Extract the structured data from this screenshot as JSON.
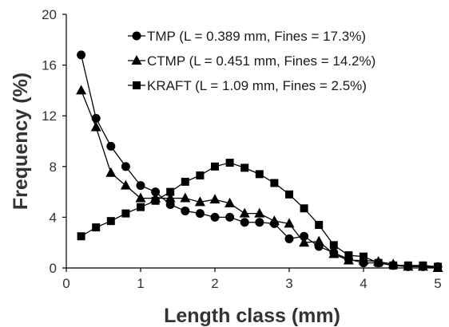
{
  "chart_data": {
    "type": "line",
    "title": "",
    "xlabel": "Length class (mm)",
    "ylabel": "Frequency (%)",
    "xlim": [
      0,
      5
    ],
    "ylim": [
      0,
      20
    ],
    "xticks": [
      0,
      1,
      2,
      3,
      4,
      5
    ],
    "yticks": [
      0,
      4,
      8,
      12,
      16,
      20
    ],
    "xtick_labels": [
      "0",
      "1",
      "2",
      "3",
      "4",
      "5"
    ],
    "ytick_labels": [
      "0",
      "4",
      "8",
      "12",
      "16",
      "20"
    ],
    "grid": false,
    "legend_position": "top-right",
    "x": [
      0.2,
      0.4,
      0.6,
      0.8,
      1.0,
      1.2,
      1.4,
      1.6,
      1.8,
      2.0,
      2.2,
      2.4,
      2.6,
      2.8,
      3.0,
      3.2,
      3.4,
      3.6,
      3.8,
      4.0,
      4.2,
      4.4,
      4.6,
      4.8,
      5.0
    ],
    "series": [
      {
        "name": "TMP (L = 0.389 mm, Fines = 17.3%)",
        "marker": "circle",
        "values": [
          16.8,
          11.8,
          9.6,
          8.0,
          6.5,
          6.0,
          5.0,
          4.5,
          4.3,
          4.0,
          4.0,
          3.6,
          3.6,
          3.5,
          2.3,
          2.5,
          1.7,
          1.2,
          0.7,
          0.4,
          0.4,
          0.2,
          0.1,
          0.1,
          0.1
        ]
      },
      {
        "name": "CTMP (L = 0.451 mm, Fines = 14.2%)",
        "marker": "triangle",
        "values": [
          14.0,
          11.1,
          7.5,
          6.5,
          5.5,
          5.5,
          5.5,
          5.5,
          5.2,
          5.4,
          5.1,
          4.3,
          4.3,
          3.7,
          3.5,
          2.0,
          2.1,
          1.1,
          0.6,
          0.6,
          0.5,
          0.3,
          0.1,
          0.1,
          0.0
        ]
      },
      {
        "name": "KRAFT (L = 1.09 mm, Fines = 2.5%)",
        "marker": "square",
        "values": [
          2.5,
          3.2,
          3.7,
          4.3,
          4.8,
          5.3,
          6.0,
          6.8,
          7.3,
          8.0,
          8.3,
          7.9,
          7.4,
          6.7,
          5.8,
          4.7,
          3.4,
          1.8,
          1.0,
          0.9,
          0.4,
          0.2,
          0.2,
          0.2,
          0.1
        ]
      }
    ]
  }
}
